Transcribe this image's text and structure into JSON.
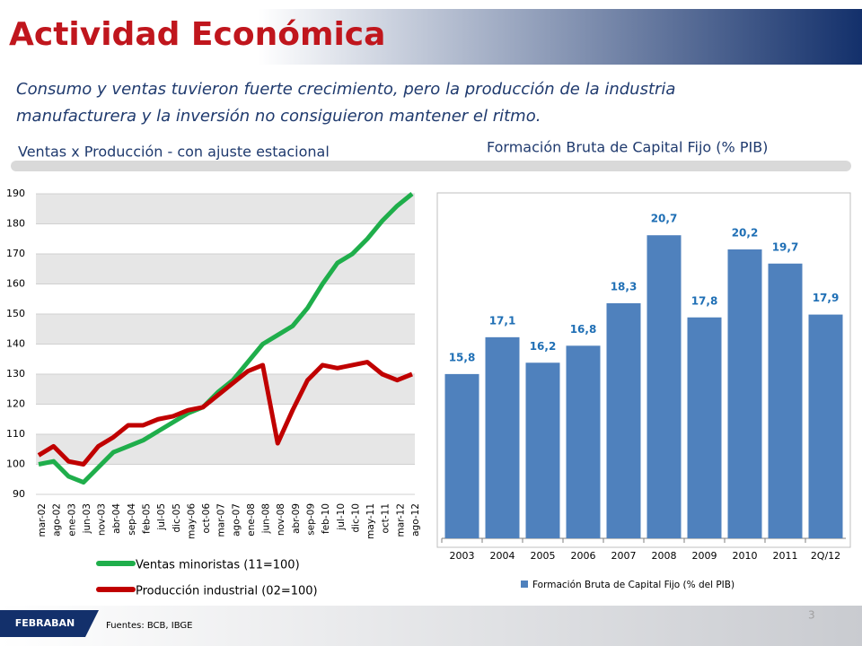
{
  "header": {
    "title": "Actividad Económica",
    "subtitle_line1": "Consumo y ventas  tuvieron fuerte crecimiento, pero la producción de la industria",
    "subtitle_line2": "manufacturera y la inversión no consiguieron mantener el ritmo."
  },
  "footer": {
    "logo": "FEBRABAN",
    "sources": "Fuentes:  BCB, IBGE",
    "page": "3"
  },
  "chart_data": [
    {
      "type": "line",
      "title": "Ventas x Producción - con ajuste estacional",
      "categories": [
        "mar-02",
        "ago-02",
        "ene-03",
        "jun-03",
        "nov-03",
        "abr-04",
        "sep-04",
        "feb-05",
        "jul-05",
        "dic-05",
        "may-06",
        "oct-06",
        "mar-07",
        "ago-07",
        "ene-08",
        "jun-08",
        "nov-08",
        "abr-09",
        "sep-09",
        "feb-10",
        "jul-10",
        "dic-10",
        "may-11",
        "oct-11",
        "mar-12",
        "ago-12"
      ],
      "series": [
        {
          "name": "Ventas minoristas (11=100)",
          "color": "#1fae4b",
          "values": [
            100,
            101,
            96,
            94,
            99,
            104,
            106,
            108,
            111,
            114,
            117,
            119,
            124,
            128,
            134,
            140,
            143,
            146,
            152,
            160,
            167,
            170,
            175,
            181,
            186,
            190
          ]
        },
        {
          "name": "Producción industrial (02=100)",
          "color": "#c00000",
          "values": [
            103,
            106,
            101,
            100,
            106,
            109,
            113,
            113,
            115,
            116,
            118,
            119,
            123,
            127,
            131,
            133,
            107,
            118,
            128,
            133,
            132,
            133,
            134,
            130,
            128,
            130
          ]
        }
      ],
      "ylim": [
        90,
        190
      ],
      "yticks": [
        90,
        100,
        110,
        120,
        130,
        140,
        150,
        160,
        170,
        180,
        190
      ],
      "grid": true
    },
    {
      "type": "bar",
      "title": "Formación Bruta de Capital Fijo (% PIB)",
      "categories": [
        "2003",
        "2004",
        "2005",
        "2006",
        "2007",
        "2008",
        "2009",
        "2010",
        "2011",
        "2Q/12"
      ],
      "series": [
        {
          "name": "Formación Bruta de Capital Fijo (% del PIB)",
          "color": "#4f81bd",
          "values": [
            15.8,
            17.1,
            16.2,
            16.8,
            18.3,
            20.7,
            17.8,
            20.2,
            19.7,
            17.9
          ],
          "value_labels": [
            "15,8",
            "17,1",
            "16,2",
            "16,8",
            "18,3",
            "20,7",
            "17,8",
            "20,2",
            "19,7",
            "17,9"
          ]
        }
      ],
      "ylim": [
        10,
        22.1
      ]
    }
  ]
}
